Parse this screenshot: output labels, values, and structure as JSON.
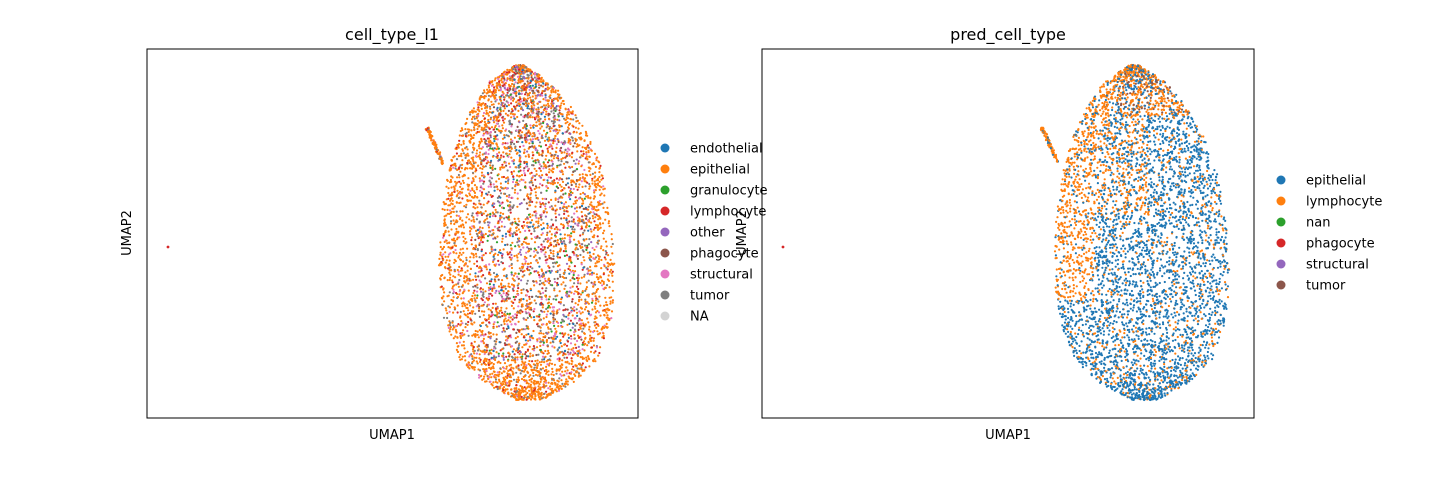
{
  "chart_data": [
    {
      "type": "scatter",
      "title": "cell_type_l1",
      "xlabel": "UMAP1",
      "ylabel": "UMAP2",
      "xticks": [],
      "yticks": [],
      "legend_position": "right",
      "legend": [
        {
          "label": "endothelial",
          "color": "#1f77b4"
        },
        {
          "label": "epithelial",
          "color": "#ff7f0e"
        },
        {
          "label": "granulocyte",
          "color": "#2ca02c"
        },
        {
          "label": "lymphocyte",
          "color": "#d62728"
        },
        {
          "label": "other",
          "color": "#9467bd"
        },
        {
          "label": "phagocyte",
          "color": "#8c564b"
        },
        {
          "label": "structural",
          "color": "#e377c2"
        },
        {
          "label": "tumor",
          "color": "#7f7f7f"
        },
        {
          "label": "NA",
          "color": "#d3d3d3"
        }
      ]
    },
    {
      "type": "scatter",
      "title": "pred_cell_type",
      "xlabel": "UMAP1",
      "ylabel": "UMAP2",
      "xticks": [],
      "yticks": [],
      "legend_position": "right",
      "legend": [
        {
          "label": "epithelial",
          "color": "#1f77b4"
        },
        {
          "label": "lymphocyte",
          "color": "#ff7f0e"
        },
        {
          "label": "nan",
          "color": "#2ca02c"
        },
        {
          "label": "phagocyte",
          "color": "#d62728"
        },
        {
          "label": "structural",
          "color": "#9467bd"
        },
        {
          "label": "tumor",
          "color": "#8c564b"
        }
      ]
    }
  ]
}
